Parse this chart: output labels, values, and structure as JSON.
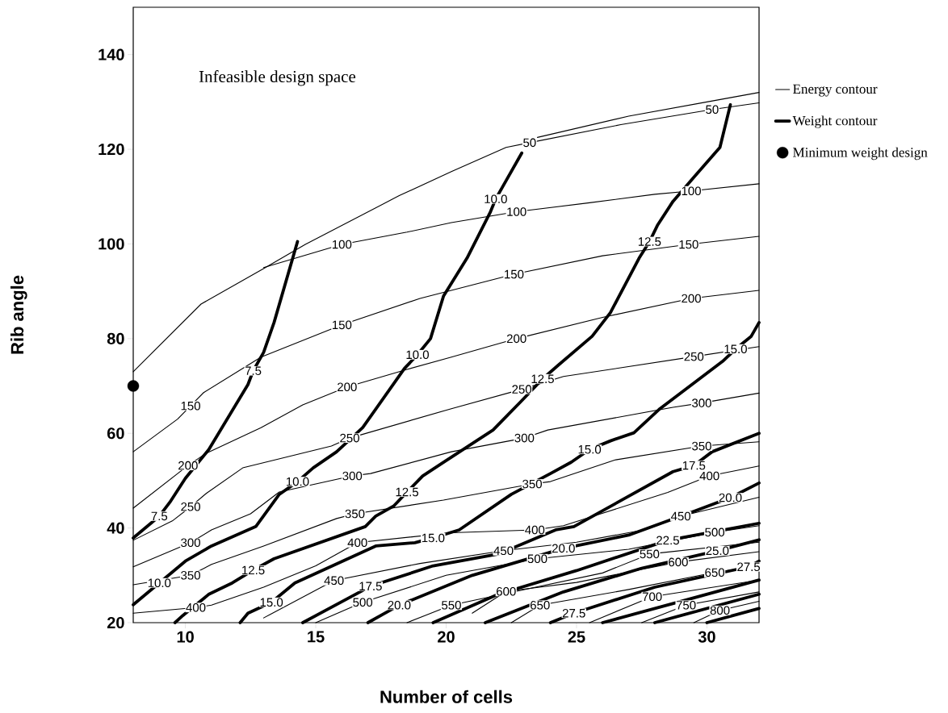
{
  "chart_data": {
    "type": "line",
    "xlabel": "Number of cells",
    "ylabel": "Rib angle",
    "xlim": [
      8,
      32
    ],
    "ylim": [
      20,
      150
    ],
    "xticks": [
      10,
      15,
      20,
      25,
      30
    ],
    "yticks": [
      20,
      40,
      60,
      80,
      100,
      120,
      140
    ],
    "legend": "right",
    "series": [
      {
        "name": "Energy contour",
        "color": "#000000",
        "x": [
          23.5,
          27,
          30,
          32
        ],
        "values": [
          122.5,
          127,
          130,
          132
        ]
      },
      {
        "color": "#000000",
        "x": [
          8,
          10.6,
          13,
          14.6,
          18.2,
          20.2,
          22.3,
          23.2,
          26.7,
          30.2,
          32
        ],
        "values": [
          73,
          87.3,
          94.8,
          99.9,
          110.2,
          115.3,
          120.4,
          121.4,
          125.2,
          128.4,
          129.8
        ]
      },
      {
        "color": "#000000",
        "x": [
          13,
          16,
          18.5,
          20.2,
          22.7,
          25.5,
          28,
          29.4,
          32
        ],
        "values": [
          95,
          99.9,
          102.5,
          104.5,
          106.8,
          108.7,
          110.5,
          111.2,
          112.7
        ]
      },
      {
        "color": "#000000",
        "x": [
          8,
          9.7,
          10.2,
          10.7,
          12.9,
          16,
          19,
          22.6,
          26,
          29.3,
          32
        ],
        "values": [
          56.1,
          63,
          65.8,
          68.6,
          76.1,
          82.9,
          88.5,
          93.6,
          97.5,
          99.9,
          101.6
        ]
      },
      {
        "color": "#000000",
        "x": [
          8,
          10.1,
          10.8,
          12.9,
          14.5,
          16.2,
          18.5,
          20.2,
          22.7,
          26,
          29.4,
          32
        ],
        "values": [
          44.2,
          53.2,
          55.8,
          61.2,
          66,
          69.8,
          73.5,
          76.1,
          80,
          84.5,
          88.5,
          90.2
        ]
      },
      {
        "color": "#000000",
        "x": [
          8,
          9.5,
          10.2,
          10.8,
          12.2,
          15.6,
          16.3,
          20.2,
          22.9,
          24.5,
          29.5,
          32
        ],
        "values": [
          37.4,
          41.5,
          44.5,
          47.3,
          52.7,
          57.3,
          59,
          65.2,
          69.3,
          72,
          76.2,
          78.3
        ]
      },
      {
        "color": "#000000",
        "x": [
          8,
          10.2,
          11,
          12.5,
          13.6,
          16.4,
          17.1,
          20.2,
          23,
          23.9,
          28.7,
          29.8,
          32
        ],
        "values": [
          31.8,
          36.9,
          39.6,
          43,
          47.6,
          51,
          51.5,
          56.1,
          59,
          60.7,
          65.5,
          66.4,
          68.5
        ]
      },
      {
        "color": "#000000",
        "x": [
          8,
          10.2,
          11,
          13,
          15.8,
          16.5,
          19.9,
          23.3,
          24,
          26.5,
          29.8,
          32
        ],
        "values": [
          28,
          30,
          32.3,
          36.2,
          42,
          43,
          45.9,
          49.3,
          49.8,
          54.4,
          57.3,
          58.2
        ]
      },
      {
        "color": "#000000",
        "x": [
          8,
          10.4,
          11,
          13,
          15,
          16.6,
          20.2,
          23.4,
          24.5,
          28.5,
          30.1,
          32
        ],
        "values": [
          22,
          23.2,
          23.7,
          27.5,
          32,
          36.9,
          39,
          39.6,
          40.5,
          47.5,
          51,
          53.1
        ]
      },
      {
        "color": "#000000",
        "x": [
          13,
          15.7,
          19,
          22.2,
          25,
          27.5,
          29,
          32
        ],
        "values": [
          21,
          28.9,
          32.5,
          35.2,
          37,
          39.5,
          42.5,
          46.5
        ]
      },
      {
        "color": "#000000",
        "x": [
          15,
          16.8,
          20,
          23.5,
          27,
          30.3,
          32
        ],
        "values": [
          20,
          24.3,
          30,
          33.5,
          35.5,
          39.1,
          40.5
        ]
      },
      {
        "color": "#000000",
        "x": [
          18.5,
          20.2,
          23,
          26,
          27.8,
          32
        ],
        "values": [
          20,
          23.7,
          27,
          30.5,
          34.5,
          37
        ]
      },
      {
        "color": "#000000",
        "x": [
          21,
          22.3,
          25,
          28.9,
          32
        ],
        "values": [
          22,
          26.6,
          28.5,
          32.8,
          35
        ]
      },
      {
        "color": "#000000",
        "x": [
          22.5,
          23.6,
          27,
          30.3,
          32
        ],
        "values": [
          20,
          23.7,
          27,
          30.6,
          32
        ]
      },
      {
        "color": "#000000",
        "x": [
          25.5,
          27.9,
          32
        ],
        "values": [
          20,
          25.5,
          29
        ]
      },
      {
        "color": "#000000",
        "x": [
          27.5,
          29.2,
          32
        ],
        "values": [
          20,
          23.7,
          26.5
        ]
      },
      {
        "color": "#000000",
        "x": [
          29.5,
          30.5,
          32
        ],
        "values": [
          20,
          22.6,
          24.5
        ]
      },
      {
        "name": "Weight contour",
        "color": "#000000",
        "x": [
          14.3,
          13.4,
          13,
          12.6,
          12.4,
          10.9,
          10,
          9.4,
          9,
          8
        ],
        "values": [
          100.5,
          83.4,
          77.1,
          73.2,
          70.3,
          56.6,
          50.5,
          45.4,
          42.5,
          37.9
        ]
      },
      {
        "color": "#000000",
        "x": [
          22.9,
          22.2,
          21.9,
          21.7,
          20.8,
          19.9,
          19.4,
          18.9,
          18.4,
          16.8,
          15.8,
          14.9,
          14.3,
          13.6,
          12.7,
          11,
          10,
          9,
          8
        ],
        "values": [
          119.2,
          112.4,
          109.5,
          106.8,
          97,
          89,
          80,
          76.6,
          73.7,
          61.2,
          56.1,
          52.7,
          49.8,
          47.1,
          40.3,
          36.2,
          33,
          28.4,
          23.8
        ]
      },
      {
        "color": "#000000",
        "x": [
          30.9,
          30.5,
          29.5,
          28.7,
          28.1,
          27.8,
          27.4,
          26.3,
          25.6,
          24.3,
          23.7,
          22.9,
          21.8,
          19.9,
          19.1,
          18.5,
          18,
          17.3,
          16.9,
          13.4,
          12.6,
          11.8,
          10.9,
          9.9,
          9.6
        ],
        "values": [
          129.4,
          120.4,
          114.1,
          109,
          103.9,
          100.5,
          97,
          85.5,
          80.5,
          74.4,
          71.5,
          66.9,
          60.7,
          53.9,
          51,
          47.6,
          44.7,
          42.5,
          40.3,
          33.5,
          31.1,
          28.4,
          26,
          21.5,
          20
        ]
      },
      {
        "color": "#000000",
        "x": [
          32,
          31.7,
          31.1,
          30.6,
          28.2,
          27.2,
          26.3,
          25.5,
          24.8,
          24,
          22.5,
          20.5,
          19.5,
          18.8,
          17.3,
          14.2,
          13.3,
          12.4,
          12.1
        ],
        "values": [
          83.4,
          80.5,
          77.8,
          75.2,
          65.2,
          60.1,
          58.4,
          56.6,
          53.9,
          51.5,
          47.1,
          39.6,
          37.9,
          36.9,
          36.2,
          28.4,
          24.3,
          22,
          20
        ]
      },
      {
        "color": "#000000",
        "x": [
          14.5,
          17.1,
          19.5,
          22,
          24.2,
          24.9,
          28.7,
          29.5,
          30.2,
          32
        ],
        "values": [
          20,
          27.7,
          32,
          34.5,
          39.6,
          40.3,
          51.9,
          53.2,
          56.1,
          60
        ]
      },
      {
        "color": "#000000",
        "x": [
          17,
          18.2,
          21,
          24.5,
          27,
          29.5,
          30.9,
          32
        ],
        "values": [
          20,
          23.7,
          30,
          35.7,
          38.5,
          43.5,
          46.4,
          49.5
        ]
      },
      {
        "color": "#000000",
        "x": [
          19.5,
          22,
          25,
          28.5,
          32
        ],
        "values": [
          20,
          26,
          31,
          37.4,
          41
        ]
      },
      {
        "color": "#000000",
        "x": [
          21.5,
          24.5,
          27.5,
          30.4,
          32
        ],
        "values": [
          20,
          26.5,
          31.5,
          35.2,
          37.5
        ]
      },
      {
        "color": "#000000",
        "x": [
          24,
          24.9,
          28,
          31.6,
          32
        ],
        "values": [
          20,
          22,
          27.5,
          31.8,
          33
        ]
      },
      {
        "color": "#000000",
        "x": [
          26,
          29,
          32
        ],
        "values": [
          20,
          24.5,
          29
        ]
      },
      {
        "color": "#000000",
        "x": [
          28,
          32
        ],
        "values": [
          20,
          26
        ]
      },
      {
        "color": "#000000",
        "x": [
          30,
          32
        ],
        "values": [
          20,
          23
        ]
      },
      {
        "name": "Minimum weight design",
        "type": "scatter",
        "color": "#000000",
        "x": [
          8
        ],
        "values": [
          70
        ]
      }
    ],
    "annotations": [
      "Infeasible design space",
      {
        "text": "50",
        "x": 23.2,
        "y": 121.4
      },
      {
        "text": "50",
        "x": 30.2,
        "y": 128.4
      },
      {
        "text": "100",
        "x": 16,
        "y": 99.9
      },
      {
        "text": "100",
        "x": 22.7,
        "y": 106.8
      },
      {
        "text": "100",
        "x": 29.4,
        "y": 111.2
      },
      {
        "text": "150",
        "x": 10.2,
        "y": 65.8
      },
      {
        "text": "150",
        "x": 16,
        "y": 82.9
      },
      {
        "text": "150",
        "x": 22.6,
        "y": 93.6
      },
      {
        "text": "150",
        "x": 29.3,
        "y": 99.9
      },
      {
        "text": "200",
        "x": 10.1,
        "y": 53.2
      },
      {
        "text": "200",
        "x": 16.2,
        "y": 69.8
      },
      {
        "text": "200",
        "x": 22.7,
        "y": 80
      },
      {
        "text": "200",
        "x": 29.4,
        "y": 88.5
      },
      {
        "text": "250",
        "x": 10.2,
        "y": 44.5
      },
      {
        "text": "250",
        "x": 16.3,
        "y": 59
      },
      {
        "text": "250",
        "x": 22.9,
        "y": 69.3
      },
      {
        "text": "250",
        "x": 29.5,
        "y": 76.2
      },
      {
        "text": "300",
        "x": 10.2,
        "y": 36.9
      },
      {
        "text": "300",
        "x": 16.4,
        "y": 51
      },
      {
        "text": "300",
        "x": 23,
        "y": 59
      },
      {
        "text": "300",
        "x": 29.8,
        "y": 66.4
      },
      {
        "text": "350",
        "x": 10.2,
        "y": 30
      },
      {
        "text": "350",
        "x": 16.5,
        "y": 43
      },
      {
        "text": "350",
        "x": 23.3,
        "y": 49.3
      },
      {
        "text": "350",
        "x": 29.8,
        "y": 57.3
      },
      {
        "text": "400",
        "x": 10.4,
        "y": 23.2
      },
      {
        "text": "400",
        "x": 16.6,
        "y": 36.9
      },
      {
        "text": "400",
        "x": 23.4,
        "y": 39.6
      },
      {
        "text": "400",
        "x": 30.1,
        "y": 51
      },
      {
        "text": "450",
        "x": 15.7,
        "y": 28.9
      },
      {
        "text": "450",
        "x": 22.2,
        "y": 35.2
      },
      {
        "text": "450",
        "x": 29,
        "y": 42.5
      },
      {
        "text": "500",
        "x": 16.8,
        "y": 24.3
      },
      {
        "text": "500",
        "x": 23.5,
        "y": 33.5
      },
      {
        "text": "500",
        "x": 30.3,
        "y": 39.1
      },
      {
        "text": "550",
        "x": 20.2,
        "y": 23.7
      },
      {
        "text": "550",
        "x": 27.8,
        "y": 34.5
      },
      {
        "text": "600",
        "x": 22.3,
        "y": 26.6
      },
      {
        "text": "600",
        "x": 28.9,
        "y": 32.8
      },
      {
        "text": "650",
        "x": 23.6,
        "y": 23.7
      },
      {
        "text": "650",
        "x": 30.3,
        "y": 30.6
      },
      {
        "text": "700",
        "x": 27.9,
        "y": 25.5
      },
      {
        "text": "750",
        "x": 29.2,
        "y": 23.7
      },
      {
        "text": "800",
        "x": 30.5,
        "y": 22.6
      },
      {
        "text": "7.5",
        "x": 12.6,
        "y": 73.2
      },
      {
        "text": "7.5",
        "x": 9,
        "y": 42.5
      },
      {
        "text": "10.0",
        "x": 21.9,
        "y": 109.5
      },
      {
        "text": "10.0",
        "x": 18.9,
        "y": 76.6
      },
      {
        "text": "10.0",
        "x": 14.3,
        "y": 49.8
      },
      {
        "text": "10.0",
        "x": 9,
        "y": 28.4
      },
      {
        "text": "12.5",
        "x": 27.8,
        "y": 100.5
      },
      {
        "text": "12.5",
        "x": 23.7,
        "y": 71.5
      },
      {
        "text": "12.5",
        "x": 18.5,
        "y": 47.6
      },
      {
        "text": "12.5",
        "x": 12.6,
        "y": 31.1
      },
      {
        "text": "15.0",
        "x": 31.1,
        "y": 77.8
      },
      {
        "text": "15.0",
        "x": 25.5,
        "y": 56.6
      },
      {
        "text": "15.0",
        "x": 19.5,
        "y": 37.9
      },
      {
        "text": "15.0",
        "x": 13.3,
        "y": 24.3
      },
      {
        "text": "17.5",
        "x": 29.5,
        "y": 53.2
      },
      {
        "text": "17.5",
        "x": 17.1,
        "y": 27.7
      },
      {
        "text": "20.0",
        "x": 30.9,
        "y": 46.4
      },
      {
        "text": "20.0",
        "x": 24.5,
        "y": 35.7
      },
      {
        "text": "20.0",
        "x": 18.2,
        "y": 23.7
      },
      {
        "text": "22.5",
        "x": 28.5,
        "y": 37.4
      },
      {
        "text": "25.0",
        "x": 30.4,
        "y": 35.2
      },
      {
        "text": "27.5",
        "x": 31.6,
        "y": 31.8
      },
      {
        "text": "27.5",
        "x": 24.9,
        "y": 22
      }
    ]
  }
}
